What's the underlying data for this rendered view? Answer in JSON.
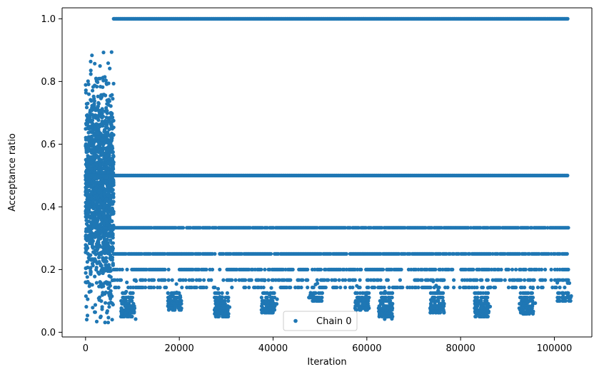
{
  "chart_data": {
    "type": "scatter",
    "title": "",
    "xlabel": "Iteration",
    "ylabel": "Acceptance ratio",
    "xlim": [
      -5000,
      108000
    ],
    "ylim": [
      -0.015,
      1.035
    ],
    "x_ticks": [
      0,
      20000,
      40000,
      60000,
      80000,
      100000
    ],
    "x_tick_labels": [
      "0",
      "20000",
      "40000",
      "60000",
      "80000",
      "100000"
    ],
    "y_ticks": [
      0.0,
      0.2,
      0.4,
      0.6,
      0.8,
      1.0
    ],
    "y_tick_labels": [
      "0.0",
      "0.2",
      "0.4",
      "0.6",
      "0.8",
      "1.0"
    ],
    "grid": false,
    "legend": {
      "position": "bottom-center",
      "entries": [
        "Chain 0"
      ]
    },
    "series": [
      {
        "name": "Chain 0",
        "color": "#1f77b4",
        "marker": "circle",
        "x_range": [
          0,
          103000
        ],
        "burn_in": {
          "x_range": [
            0,
            6000
          ],
          "y_range": [
            0.03,
            0.9
          ]
        },
        "levels": [
          {
            "y": 1.0,
            "x_range": [
              6000,
              103000
            ]
          },
          {
            "y": 0.5,
            "x_range": [
              0,
              103000
            ]
          },
          {
            "y": 0.3333,
            "x_range": [
              6000,
              103000
            ]
          },
          {
            "y": 0.25,
            "x_range": [
              6000,
              103000
            ]
          },
          {
            "y": 0.2,
            "x_range": [
              6000,
              103000
            ]
          },
          {
            "y": 0.1667,
            "x_range": [
              6000,
              103000
            ]
          },
          {
            "y": 0.1429,
            "x_range": [
              6000,
              103000
            ]
          }
        ],
        "low_clusters": [
          {
            "x": 10000,
            "y_min": 0.04
          },
          {
            "x": 20000,
            "y_min": 0.07
          },
          {
            "x": 30000,
            "y_min": 0.04
          },
          {
            "x": 40000,
            "y_min": 0.06
          },
          {
            "x": 50000,
            "y_min": 0.1
          },
          {
            "x": 60000,
            "y_min": 0.07
          },
          {
            "x": 65000,
            "y_min": 0.04
          },
          {
            "x": 76000,
            "y_min": 0.06
          },
          {
            "x": 85500,
            "y_min": 0.05
          },
          {
            "x": 95000,
            "y_min": 0.055
          },
          {
            "x": 103000,
            "y_min": 0.1
          }
        ]
      }
    ]
  }
}
